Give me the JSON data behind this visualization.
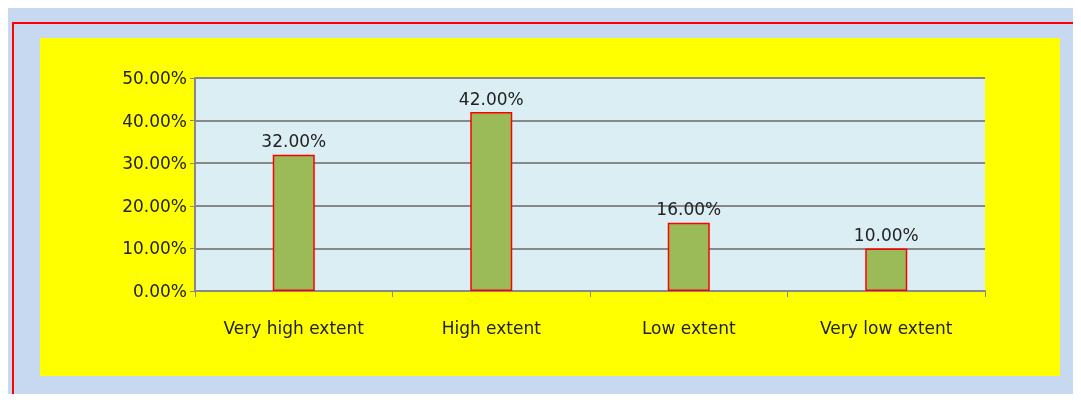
{
  "chart_data": {
    "type": "bar",
    "categories": [
      "Very high extent",
      "High extent",
      "Low extent",
      "Very low extent"
    ],
    "values": [
      32,
      42,
      16,
      10
    ],
    "value_labels": [
      "32.00%",
      "42.00%",
      "16.00%",
      "10.00%"
    ],
    "color": "#9bbb59",
    "ylim": [
      0,
      50
    ],
    "yticks": [
      {
        "value": 0,
        "label": "0.00%"
      },
      {
        "value": 10,
        "label": "10.00%"
      },
      {
        "value": 20,
        "label": "20.00%"
      },
      {
        "value": 30,
        "label": "30.00%"
      },
      {
        "value": 40,
        "label": "40.00%"
      },
      {
        "value": 50,
        "label": "50.00%"
      }
    ],
    "grid": "y"
  }
}
